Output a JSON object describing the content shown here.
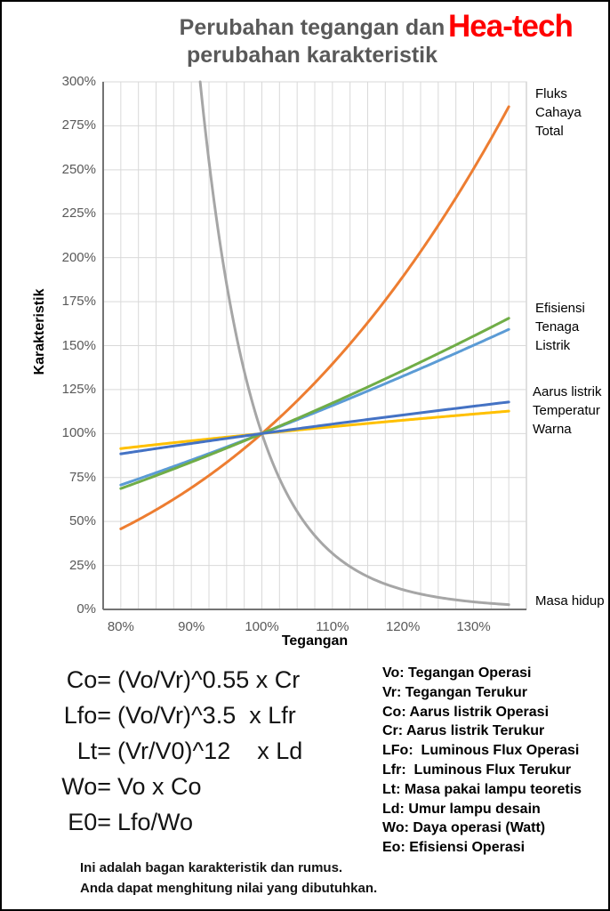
{
  "header": {
    "title_line1": "Perubahan tegangan dan",
    "title_line2": "perubahan karakteristik",
    "title_color": "#595959",
    "brand": "Hea-tech",
    "brand_color": "#FF0000"
  },
  "chart_data": {
    "type": "line",
    "title": "Perubahan tegangan dan perubahan karakteristik",
    "xlabel": "Tegangan",
    "ylabel": "Karakteristik",
    "x_range_pct": [
      77.5,
      137.5
    ],
    "y_range_pct": [
      0,
      300
    ],
    "x_gridline_step_pct": 2.5,
    "y_gridline_step_pct": 25,
    "grid": true,
    "legend_position": "right-annotations",
    "x_ticks": [
      {
        "value": 80,
        "label": "80%"
      },
      {
        "value": 90,
        "label": "90%"
      },
      {
        "value": 100,
        "label": "100%"
      },
      {
        "value": 110,
        "label": "110%"
      },
      {
        "value": 120,
        "label": "120%"
      },
      {
        "value": 130,
        "label": "130%"
      }
    ],
    "y_ticks": [
      {
        "value": 300,
        "label": "300%"
      },
      {
        "value": 275,
        "label": "275%"
      },
      {
        "value": 250,
        "label": "250%"
      },
      {
        "value": 225,
        "label": "225%"
      },
      {
        "value": 200,
        "label": "200%"
      },
      {
        "value": 175,
        "label": "175%"
      },
      {
        "value": 150,
        "label": "150%"
      },
      {
        "value": 125,
        "label": "125%"
      },
      {
        "value": 100,
        "label": "100%"
      },
      {
        "value": 75,
        "label": "75%"
      },
      {
        "value": 50,
        "label": "50%"
      },
      {
        "value": 25,
        "label": "25%"
      },
      {
        "value": 0,
        "label": "0%"
      }
    ],
    "x_sample_pct": [
      80,
      85,
      90,
      95,
      100,
      105,
      110,
      115,
      120,
      125,
      130,
      135
    ],
    "series": [
      {
        "id": "masa-hidup",
        "label": "Masa hidup",
        "color": "#A6A6A6",
        "exponent": -12,
        "clip_max_pct": 300,
        "values_pct": [
          1455.2,
          700.4,
          354.1,
          185.1,
          100,
          55.7,
          31.9,
          18.7,
          11.2,
          6.9,
          4.3,
          2.7
        ]
      },
      {
        "id": "fluks-cahaya-total",
        "label": "Fluks Cahaya Total",
        "color": "#ED7D31",
        "exponent": 3.5,
        "values_pct": [
          45.8,
          56.6,
          69.2,
          83.6,
          100,
          118.6,
          139.6,
          163.1,
          189.3,
          218.4,
          250.5,
          286.0
        ]
      },
      {
        "id": "tenaga-listrik",
        "label": "Tenaga Listrik",
        "color": "#5B9BD5",
        "exponent": 1.55,
        "values_pct": [
          70.8,
          77.7,
          84.9,
          92.4,
          100,
          107.9,
          115.9,
          124.2,
          132.7,
          141.3,
          150.2,
          159.2
        ]
      },
      {
        "id": "efisiensi",
        "label": "Efisiensi",
        "color": "#70AD47",
        "exponent": 1.68,
        "values_pct": [
          68.7,
          76.1,
          83.8,
          91.7,
          100,
          108.5,
          117.4,
          126.5,
          135.8,
          145.5,
          155.4,
          165.6
        ]
      },
      {
        "id": "temperatur-warna",
        "label": "Temperatur Warna",
        "color": "#FFC000",
        "exponent": 0.4,
        "values_pct": [
          91.5,
          93.7,
          95.9,
          98.0,
          100,
          102.0,
          103.9,
          105.7,
          107.6,
          109.3,
          111.1,
          112.8
        ]
      },
      {
        "id": "aarus-listrik",
        "label": "Aarus listrik",
        "color": "#4472C4",
        "exponent": 0.55,
        "values_pct": [
          88.4,
          91.5,
          94.4,
          97.2,
          100,
          102.7,
          105.4,
          108.0,
          110.6,
          113.1,
          115.5,
          118.0
        ]
      }
    ],
    "labels": {
      "fluks": "Fluks\nCahaya\nTotal",
      "efisiensi": "Efisiensi\nTenaga\nListrik",
      "aarus": "Aarus listrik\nTemperatur\nWarna",
      "masa": "Masa hidup"
    }
  },
  "formulas": [
    {
      "lhs": "Co=",
      "rhs": "(Vo/Vr)^0.55 x Cr"
    },
    {
      "lhs": "Lfo=",
      "rhs": "(Vo/Vr)^3.5  x Lfr"
    },
    {
      "lhs": "Lt=",
      "rhs": "(Vr/V0)^12    x Ld"
    },
    {
      "lhs": "Wo=",
      "rhs": "Vo x Co"
    },
    {
      "lhs": "E0=",
      "rhs": "Lfo/Wo"
    }
  ],
  "definitions": [
    "Vo: Tegangan Operasi",
    "Vr: Tegangan Terukur",
    "Co: Aarus listrik Operasi",
    "Cr: Aarus listrik Terukur",
    "LFo:  Luminous Flux Operasi",
    "Lfr:  Luminous Flux Terukur",
    "Lt: Masa pakai lampu teoretis",
    "Ld: Umur lampu desain",
    "Wo: Daya operasi (Watt)",
    "Eo: Efisiensi Operasi"
  ],
  "note": {
    "line1": "Ini adalah bagan karakteristik dan rumus.",
    "line2": "Anda dapat menghitung nilai yang dibutuhkan."
  }
}
